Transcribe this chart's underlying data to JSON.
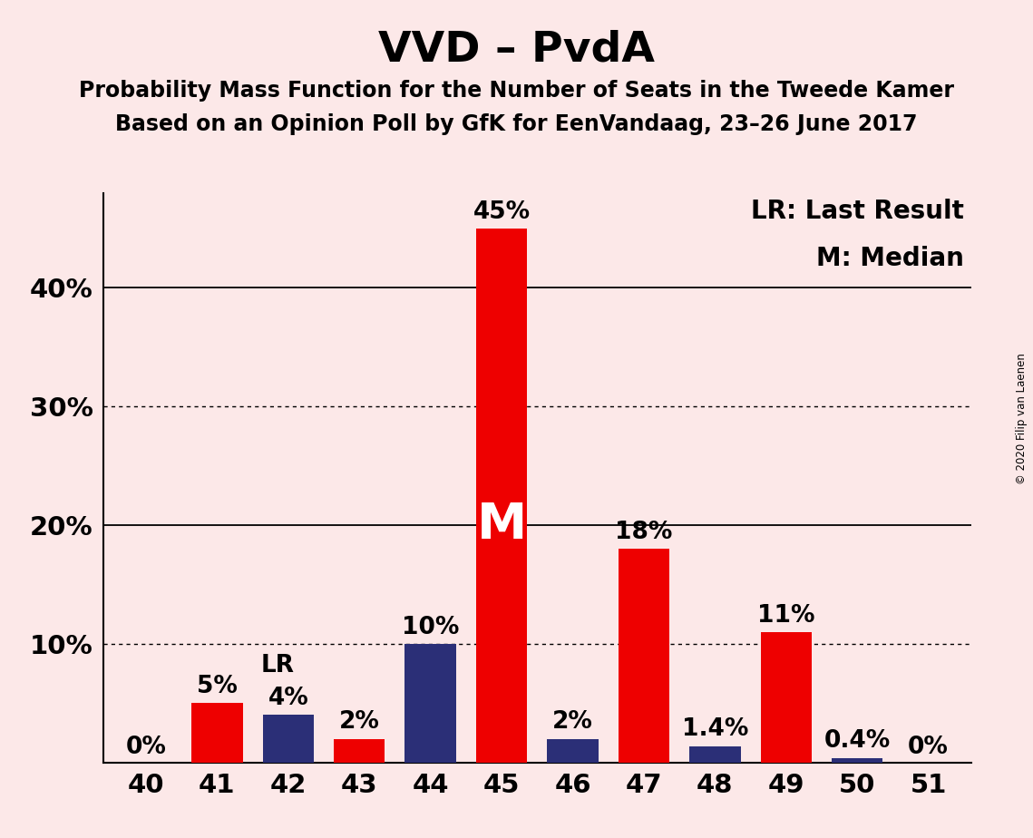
{
  "title": "VVD – PvdA",
  "subtitle1": "Probability Mass Function for the Number of Seats in the Tweede Kamer",
  "subtitle2": "Based on an Opinion Poll by GfK for EenVandaag, 23–26 June 2017",
  "copyright": "© 2020 Filip van Laenen",
  "legend_lr": "LR: Last Result",
  "legend_m": "M: Median",
  "background_color": "#fce8e8",
  "red_color": "#ee0000",
  "blue_color": "#2b2f77",
  "seats": [
    40,
    41,
    42,
    43,
    44,
    45,
    46,
    47,
    48,
    49,
    50,
    51
  ],
  "red_values": [
    0,
    5,
    0,
    2,
    0,
    45,
    0,
    18,
    0,
    11,
    0,
    0
  ],
  "blue_values": [
    0,
    0,
    4,
    0,
    10,
    0,
    2,
    0,
    1.4,
    0,
    0.4,
    0
  ],
  "red_labels": [
    "0%",
    "5%",
    "",
    "2%",
    "",
    "45%",
    "",
    "18%",
    "",
    "11%",
    "",
    "0%"
  ],
  "blue_labels": [
    "",
    "",
    "4%",
    "",
    "10%",
    "",
    "2%",
    "",
    "1.4%",
    "",
    "0.4%",
    ""
  ],
  "lr_seat": 42,
  "median_seat": 45,
  "ylim": [
    0,
    48
  ],
  "yticks": [
    10,
    20,
    30,
    40
  ],
  "ytick_labels": [
    "10%",
    "20%",
    "30%",
    "40%"
  ],
  "solid_yticks": [
    20,
    40
  ],
  "dotted_yticks": [
    10,
    30
  ],
  "bar_width": 0.72,
  "title_fontsize": 34,
  "subtitle_fontsize": 17,
  "label_fontsize": 19,
  "tick_fontsize": 21,
  "legend_fontsize": 20,
  "median_fontsize": 40,
  "lr_label_fontsize": 19
}
